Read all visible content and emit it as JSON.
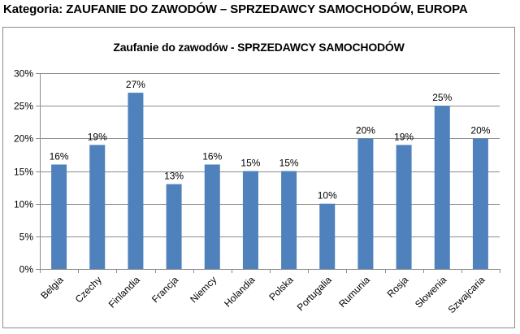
{
  "page": {
    "heading": "Kategoria: ZAUFANIE DO ZAWODÓW – SPRZEDAWCY SAMOCHODÓW, EUROPA"
  },
  "chart_data": {
    "type": "bar",
    "title": "Zaufanie do zawodów  - SPRZEDAWCY SAMOCHODÓW",
    "categories": [
      "Belgia",
      "Czechy",
      "Finlandia",
      "Francja",
      "Niemcy",
      "Holandia",
      "Polska",
      "Portugalia",
      "Rumunia",
      "Rosja",
      "Słowenia",
      "Szwajcaria"
    ],
    "values": [
      16,
      19,
      27,
      13,
      16,
      15,
      15,
      10,
      20,
      19,
      25,
      20
    ],
    "data_labels": [
      "16%",
      "19%",
      "27%",
      "13%",
      "16%",
      "15%",
      "15%",
      "10%",
      "20%",
      "19%",
      "25%",
      "20%"
    ],
    "y_ticks": [
      "0%",
      "5%",
      "10%",
      "15%",
      "20%",
      "25%",
      "30%"
    ],
    "ylim": [
      0,
      30
    ],
    "xlabel": "",
    "ylabel": "",
    "grid": true,
    "legend": "none",
    "bar_color": "#4f81bd",
    "grid_color": "#8c8c8c"
  }
}
